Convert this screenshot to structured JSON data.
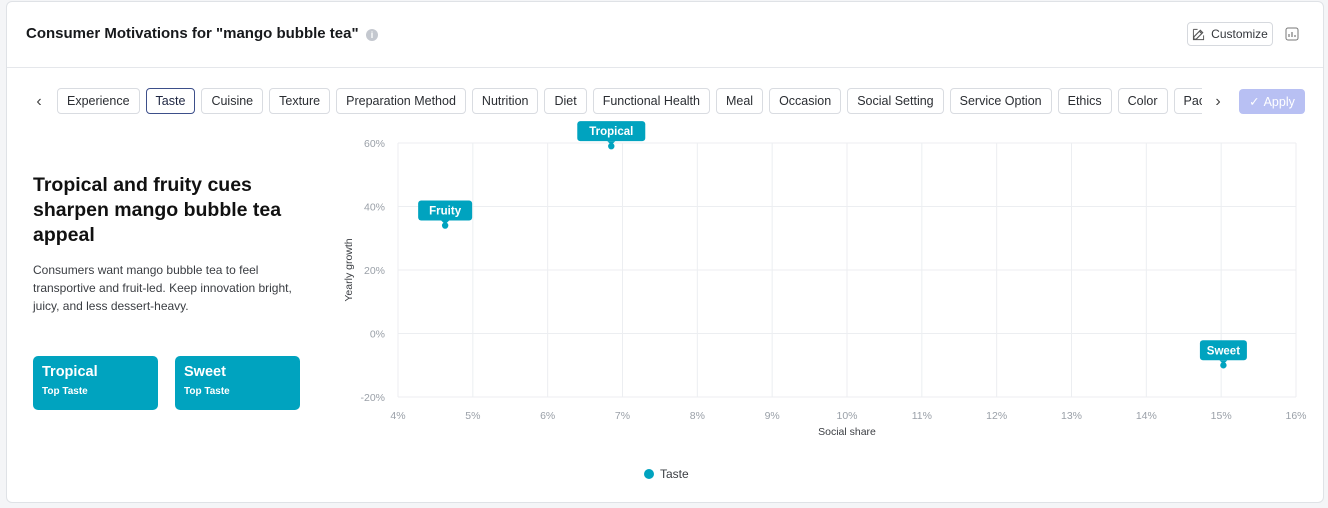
{
  "header": {
    "title": "Consumer Motivations for \"mango bubble tea\"",
    "info_icon": "info-icon",
    "customize_label": "Customize",
    "customize_icon": "edit-icon",
    "chart_toggle_icon": "chart-icon"
  },
  "tabs": {
    "prev_icon": "chevron-left-icon",
    "next_icon": "chevron-right-icon",
    "items": [
      "Experience",
      "Taste",
      "Cuisine",
      "Texture",
      "Preparation Method",
      "Nutrition",
      "Diet",
      "Functional Health",
      "Meal",
      "Occasion",
      "Social Setting",
      "Service Option",
      "Ethics",
      "Color",
      "Packaging"
    ],
    "active": "Taste",
    "apply_label": "Apply"
  },
  "insight": {
    "headline": "Tropical and fruity cues sharpen mango bubble tea appeal",
    "description": "Consumers want mango bubble tea to feel transportive and fruit-led. Keep innovation bright, juicy, and less dessert-heavy.",
    "tiles": [
      {
        "label": "Tropical",
        "sub": "Top Taste"
      },
      {
        "label": "Sweet",
        "sub": "Top Taste"
      }
    ]
  },
  "colors": {
    "accent": "#00a3bf",
    "apply_disabled": "#b8c0f3"
  },
  "chart_data": {
    "type": "scatter",
    "xlabel": "Social share",
    "ylabel": "Yearly growth",
    "xlim": [
      4,
      16
    ],
    "ylim": [
      -20,
      60
    ],
    "xticks": [
      4,
      5,
      6,
      7,
      8,
      9,
      10,
      11,
      12,
      13,
      14,
      15,
      16
    ],
    "yticks": [
      -20,
      0,
      20,
      40,
      60
    ],
    "grid": true,
    "legend_position": "bottom",
    "series": [
      {
        "name": "Taste",
        "color": "#00a3bf",
        "points": [
          {
            "label": "Tropical",
            "x": 6.85,
            "y": 59
          },
          {
            "label": "Fruity",
            "x": 4.63,
            "y": 34
          },
          {
            "label": "Sweet",
            "x": 15.03,
            "y": -10
          }
        ]
      }
    ]
  }
}
